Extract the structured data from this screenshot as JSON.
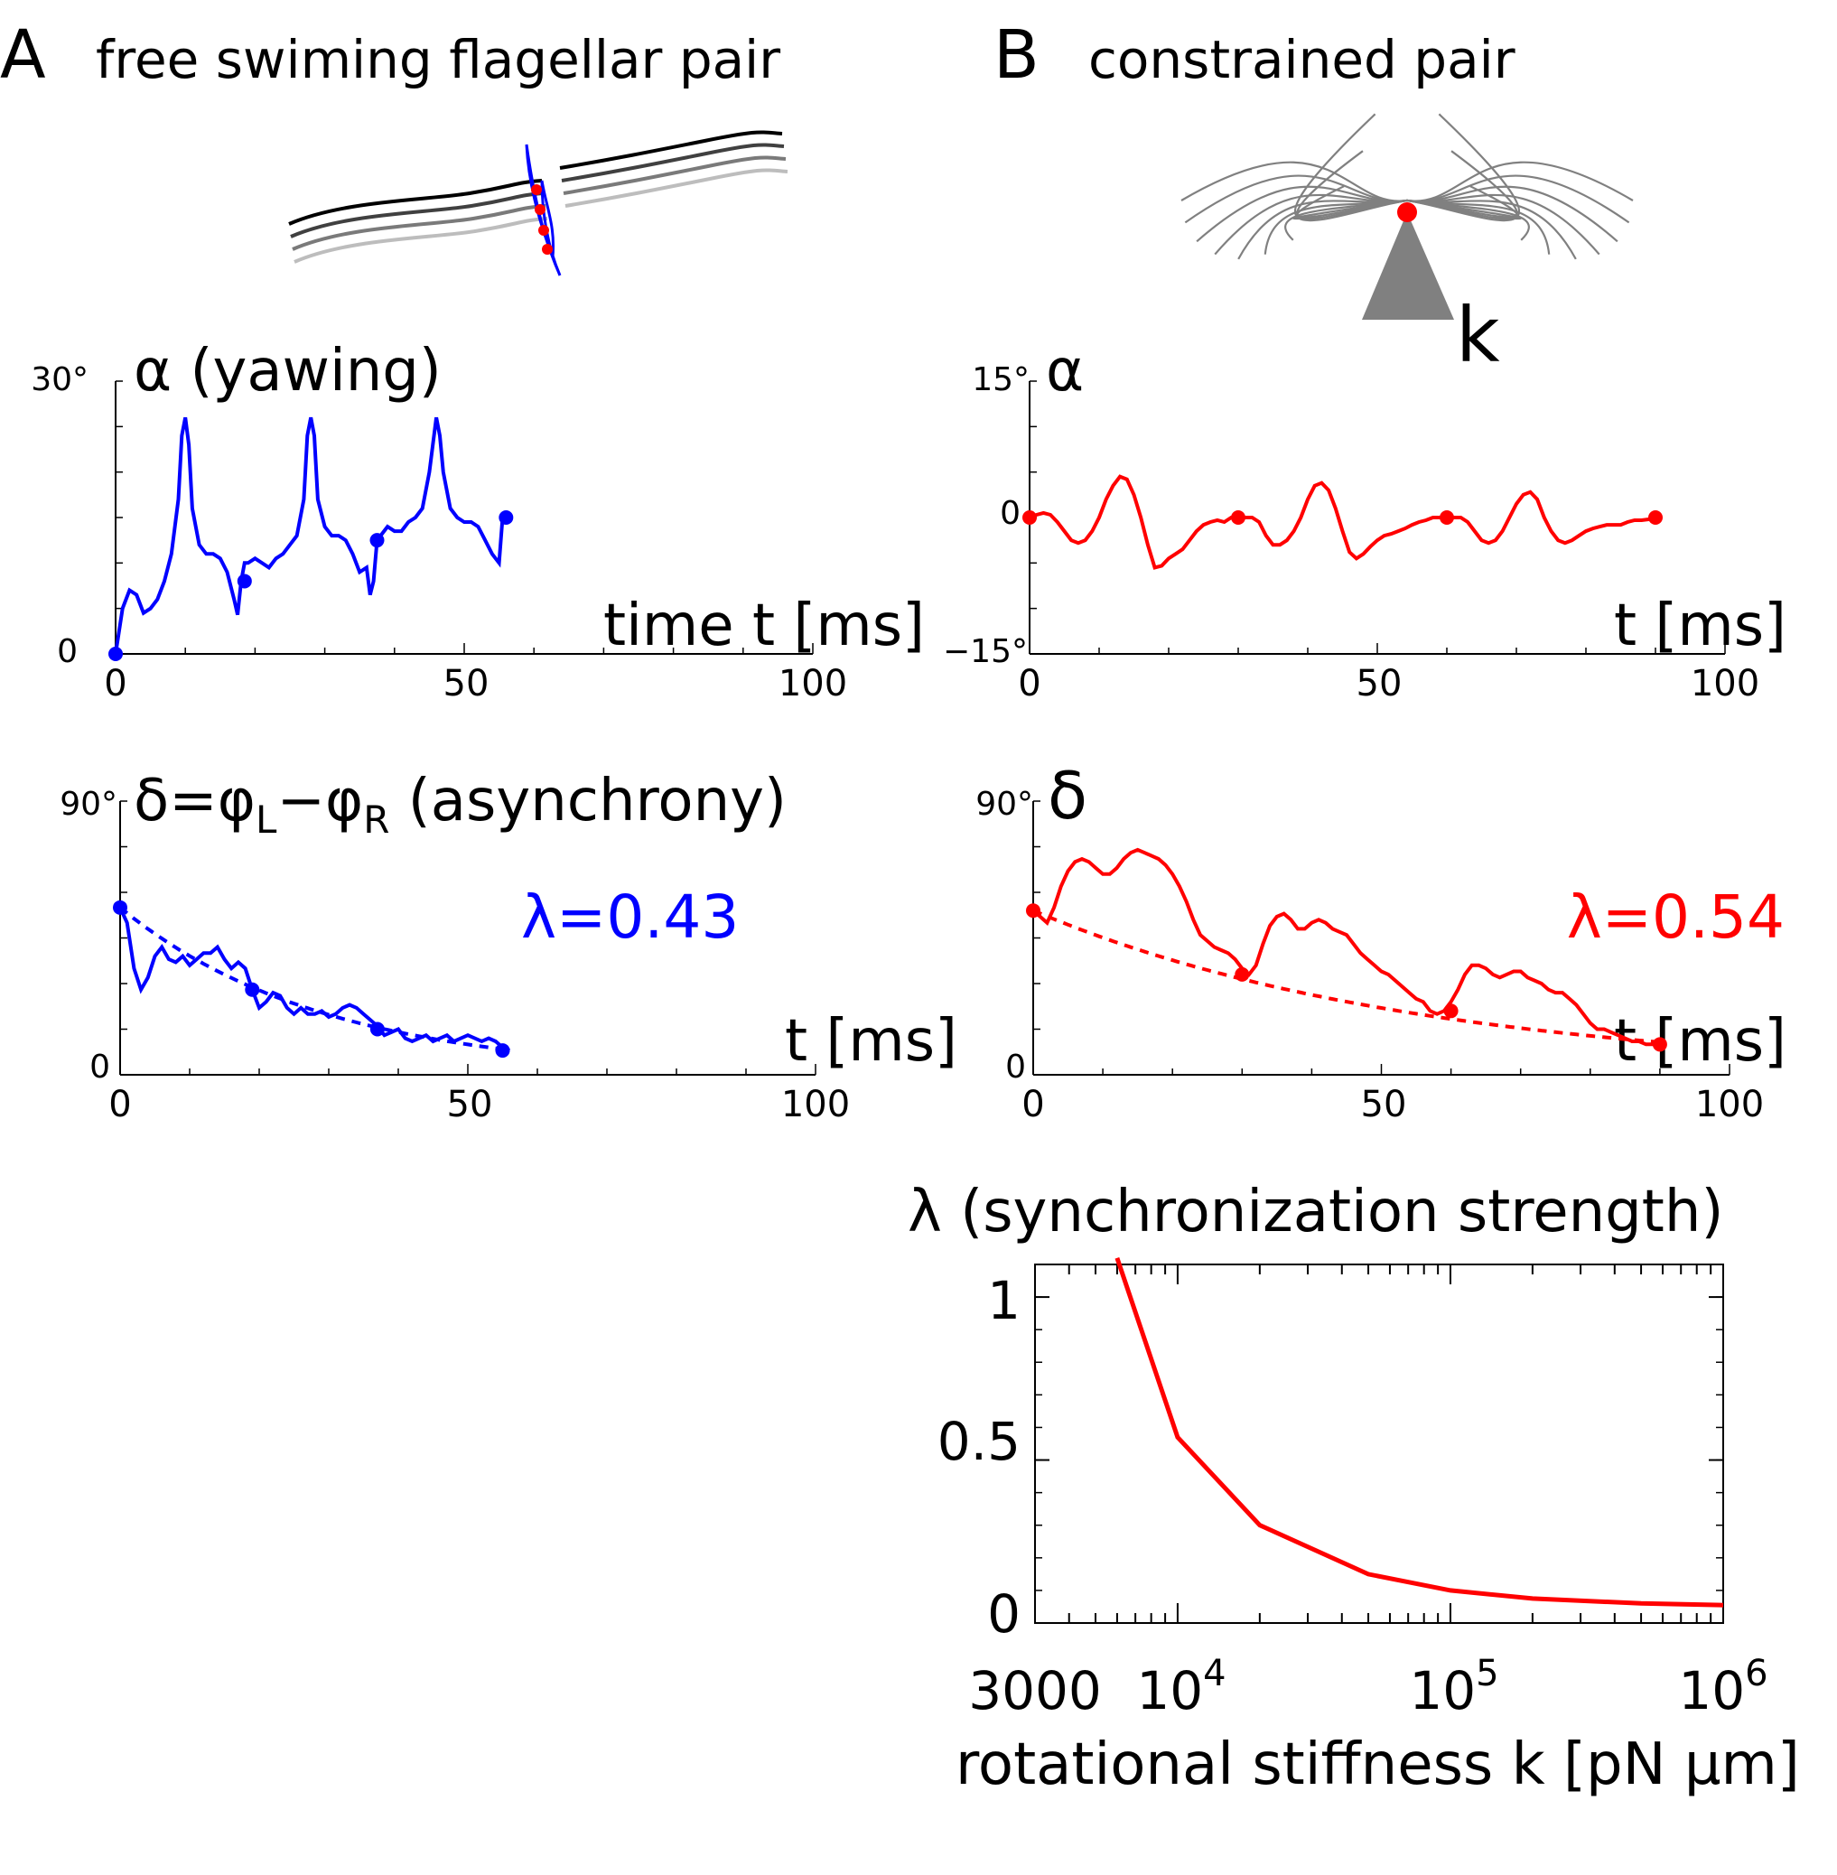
{
  "panels": {
    "a": {
      "letter": "A",
      "title": "free swiming flagellar pair"
    },
    "b": {
      "letter": "B",
      "title": "constrained pair",
      "spring_label": "k"
    }
  },
  "colors": {
    "free": "#0000ff",
    "constrained": "#ff0000",
    "sketch": "#808080"
  },
  "chart_data": [
    {
      "id": "A-alpha",
      "type": "line",
      "title": "α (yawing)",
      "xlabel": "time t [ms]",
      "xlim": [
        0,
        100
      ],
      "ylim": [
        0,
        30
      ],
      "xticks": [
        "0",
        "50",
        "100"
      ],
      "yticks": [
        "0",
        "30°"
      ],
      "series": [
        {
          "name": "alpha free",
          "color": "#0000ff",
          "x": [
            0,
            1,
            2,
            3,
            4,
            5,
            6,
            7,
            8,
            9,
            9.5,
            10,
            10.5,
            11,
            12,
            13,
            14,
            15,
            16,
            17,
            17.5,
            18,
            18.5,
            19,
            20,
            21,
            22,
            23,
            24,
            25,
            26,
            27,
            27.5,
            28,
            28.5,
            29,
            30,
            31,
            32,
            33,
            34,
            35,
            36,
            36.5,
            37,
            37.5,
            38,
            39,
            40,
            41,
            42,
            43,
            44,
            45,
            46,
            46.5,
            47,
            48,
            49,
            50,
            51,
            52,
            53,
            54,
            55,
            55.5,
            56
          ],
          "y": [
            0,
            5,
            7,
            6.5,
            4.5,
            5,
            6,
            8,
            11,
            17,
            24,
            26,
            23,
            16,
            12,
            11,
            11,
            10.5,
            9,
            6,
            4.3,
            8,
            10,
            10,
            10.5,
            10,
            9.5,
            10.5,
            11,
            12,
            13,
            17,
            24,
            26,
            24,
            17,
            14,
            13,
            13,
            12.5,
            11,
            9,
            9.5,
            6.5,
            8,
            12.5,
            13,
            14,
            13.5,
            13.5,
            14.5,
            15,
            16,
            20,
            26,
            24,
            20,
            16,
            15,
            14.5,
            14.5,
            14,
            12.5,
            11,
            10,
            15,
            15
          ]
        },
        {
          "name": "markers",
          "x": [
            0,
            18.5,
            37.5,
            56
          ],
          "y": [
            0,
            8,
            12.5,
            15
          ]
        }
      ]
    },
    {
      "id": "B-alpha",
      "type": "line",
      "title": "α",
      "xlabel": "t [ms]",
      "xlim": [
        0,
        100
      ],
      "ylim": [
        -15,
        15
      ],
      "xticks": [
        "0",
        "50",
        "100"
      ],
      "yticks": [
        "−15°",
        "0",
        "15°"
      ],
      "series": [
        {
          "name": "alpha constrained",
          "color": "#ff0000",
          "x": [
            0,
            1,
            2,
            3,
            4,
            5,
            6,
            7,
            8,
            9,
            10,
            11,
            12,
            13,
            14,
            15,
            16,
            17,
            18,
            19,
            20,
            21,
            22,
            23,
            24,
            25,
            26,
            27,
            28,
            29,
            30,
            31,
            32,
            33,
            34,
            35,
            36,
            37,
            38,
            39,
            40,
            41,
            42,
            43,
            44,
            45,
            46,
            47,
            48,
            49,
            50,
            51,
            52,
            53,
            54,
            55,
            56,
            57,
            58,
            59,
            60,
            61,
            62,
            63,
            64,
            65,
            66,
            67,
            68,
            69,
            70,
            71,
            72,
            73,
            74,
            75,
            76,
            77,
            78,
            79,
            80,
            81,
            82,
            83,
            84,
            85,
            86,
            87,
            88,
            89,
            90
          ],
          "y": [
            0,
            0.3,
            0.5,
            0.3,
            -0.5,
            -1.5,
            -2.5,
            -2.8,
            -2.5,
            -1.5,
            0,
            2,
            3.5,
            4.5,
            4.2,
            2.5,
            0,
            -3,
            -5.5,
            -5.3,
            -4.5,
            -4,
            -3.5,
            -2.5,
            -1.5,
            -0.8,
            -0.5,
            -0.3,
            -0.5,
            0,
            0,
            0,
            0,
            -0.5,
            -2,
            -3,
            -3,
            -2.5,
            -1.5,
            0,
            2,
            3.5,
            3.8,
            3,
            1,
            -1.5,
            -3.8,
            -4.5,
            -4,
            -3.2,
            -2.5,
            -2,
            -1.8,
            -1.5,
            -1.2,
            -0.8,
            -0.5,
            -0.3,
            0,
            0,
            0,
            0,
            0,
            -0.5,
            -1.5,
            -2.5,
            -2.8,
            -2.5,
            -1.5,
            0,
            1.5,
            2.5,
            2.8,
            2,
            0,
            -1.5,
            -2.5,
            -2.8,
            -2.5,
            -2,
            -1.5,
            -1.2,
            -1,
            -0.8,
            -0.8,
            -0.8,
            -0.5,
            -0.3,
            -0.3,
            -0.2,
            0
          ]
        },
        {
          "name": "markers",
          "x": [
            0,
            30,
            60,
            90
          ],
          "y": [
            0,
            0,
            0,
            0
          ]
        }
      ]
    },
    {
      "id": "A-delta",
      "type": "line",
      "title_parts": [
        "δ=φ",
        "L",
        "−φ",
        "R",
        " (asynchrony)"
      ],
      "lambda_label": "λ=0.43",
      "xlabel": "t [ms]",
      "xlim": [
        0,
        100
      ],
      "ylim": [
        0,
        90
      ],
      "xticks": [
        "0",
        "50",
        "100"
      ],
      "yticks": [
        "0",
        "90°"
      ],
      "series": [
        {
          "name": "delta free",
          "color": "#0000ff",
          "x": [
            0,
            1,
            2,
            3,
            4,
            5,
            6,
            7,
            8,
            9,
            10,
            11,
            12,
            13,
            14,
            15,
            16,
            17,
            18,
            19,
            20,
            21,
            22,
            23,
            24,
            25,
            26,
            27,
            28,
            29,
            30,
            31,
            32,
            33,
            34,
            35,
            36,
            37,
            38,
            39,
            40,
            41,
            42,
            43,
            44,
            45,
            46,
            47,
            48,
            49,
            50,
            51,
            52,
            53,
            54,
            55,
            56
          ],
          "y": [
            55,
            50,
            35,
            28,
            32,
            39,
            42,
            38,
            37,
            39,
            36,
            38,
            40,
            40,
            42,
            38,
            35,
            37,
            35,
            28,
            22,
            24,
            27,
            26,
            22,
            20,
            22,
            20,
            20,
            21,
            19,
            20,
            22,
            23,
            22,
            20,
            18,
            16,
            13,
            14,
            15,
            12,
            11,
            12,
            13,
            11,
            12,
            13,
            11,
            12,
            13,
            12,
            11,
            12,
            11,
            9,
            8
          ]
        },
        {
          "name": "fit",
          "kind": "exponential",
          "y0": 55,
          "tau": 29.3
        },
        {
          "name": "markers",
          "x": [
            0,
            19,
            37,
            55
          ],
          "y": [
            55,
            28,
            15,
            8
          ]
        }
      ]
    },
    {
      "id": "B-delta",
      "type": "line",
      "title": "δ",
      "lambda_label": "λ=0.54",
      "xlabel": "t [ms]",
      "xlim": [
        0,
        100
      ],
      "ylim": [
        0,
        90
      ],
      "xticks": [
        "0",
        "50",
        "100"
      ],
      "yticks": [
        "0",
        "90°"
      ],
      "series": [
        {
          "name": "delta constrained",
          "color": "#ff0000",
          "x": [
            0,
            1,
            2,
            3,
            4,
            5,
            6,
            7,
            8,
            9,
            10,
            11,
            12,
            13,
            14,
            15,
            16,
            17,
            18,
            19,
            20,
            21,
            22,
            23,
            24,
            25,
            26,
            27,
            28,
            29,
            30,
            31,
            32,
            33,
            34,
            35,
            36,
            37,
            38,
            39,
            40,
            41,
            42,
            43,
            44,
            45,
            46,
            47,
            48,
            49,
            50,
            51,
            52,
            53,
            54,
            55,
            56,
            57,
            58,
            59,
            60,
            61,
            62,
            63,
            64,
            65,
            66,
            67,
            68,
            69,
            70,
            71,
            72,
            73,
            74,
            75,
            76,
            77,
            78,
            79,
            80,
            81,
            82,
            83,
            84,
            85,
            86,
            87,
            88,
            89,
            90
          ],
          "y": [
            54,
            52,
            50,
            55,
            62,
            67,
            70,
            71,
            70,
            68,
            66,
            66,
            68,
            71,
            73,
            74,
            73,
            72,
            71,
            69,
            66,
            62,
            57,
            51,
            46,
            44,
            42,
            41,
            40,
            38,
            35,
            33,
            36,
            43,
            49,
            52,
            53,
            51,
            48,
            48,
            50,
            51,
            50,
            48,
            47,
            46,
            43,
            40,
            38,
            36,
            34,
            33,
            31,
            29,
            27,
            25,
            24,
            21,
            20,
            21,
            24,
            28,
            33,
            36,
            36,
            35,
            33,
            32,
            33,
            34,
            34,
            32,
            31,
            30,
            28,
            27,
            27,
            25,
            23,
            20,
            17,
            15,
            15,
            14,
            13,
            12,
            11,
            11,
            10,
            10,
            10
          ]
        },
        {
          "name": "fit",
          "kind": "exponential",
          "y0": 54,
          "tau": 55.6
        },
        {
          "name": "markers",
          "x": [
            0,
            30,
            60,
            90
          ],
          "y": [
            54,
            33,
            21,
            10
          ]
        }
      ]
    },
    {
      "id": "B-lambda",
      "type": "line",
      "title": "λ (synchronization strength)",
      "xlabel": "rotational stiffness k [pN μm]",
      "xscale": "log",
      "xlim": [
        3000,
        1000000
      ],
      "ylim": [
        0,
        1.1
      ],
      "xticks": [
        {
          "base": "3000",
          "exp": ""
        },
        {
          "base": "10",
          "exp": "4"
        },
        {
          "base": "10",
          "exp": "5"
        },
        {
          "base": "10",
          "exp": "6"
        }
      ],
      "yticks": [
        "0",
        "0.5",
        "1"
      ],
      "series": [
        {
          "name": "lambda vs k",
          "color": "#ff0000",
          "x": [
            6000,
            10000,
            20000,
            50000,
            100000,
            200000,
            500000,
            1000000
          ],
          "y": [
            1.12,
            0.57,
            0.3,
            0.15,
            0.1,
            0.075,
            0.06,
            0.055
          ]
        }
      ]
    }
  ]
}
